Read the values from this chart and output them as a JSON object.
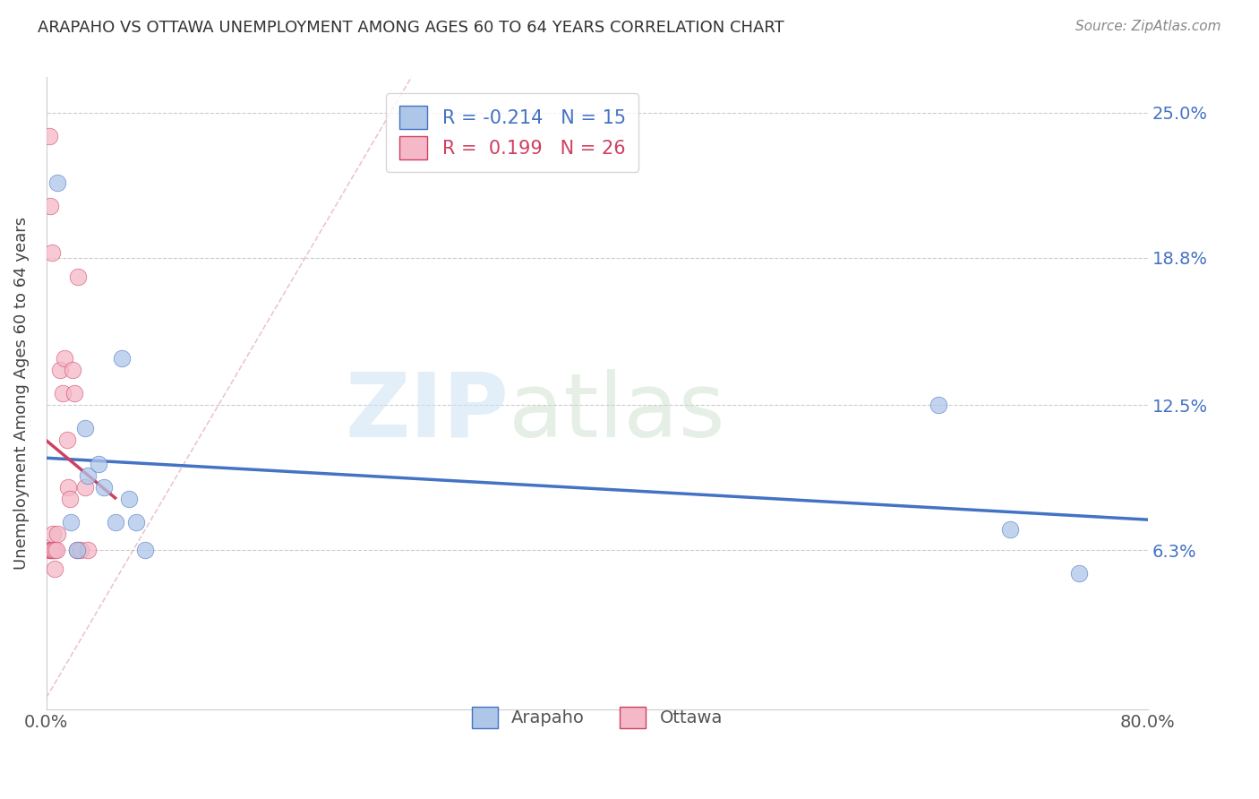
{
  "title": "ARAPAHO VS OTTAWA UNEMPLOYMENT AMONG AGES 60 TO 64 YEARS CORRELATION CHART",
  "source": "Source: ZipAtlas.com",
  "ylabel": "Unemployment Among Ages 60 to 64 years",
  "xlim": [
    0.0,
    0.8
  ],
  "ylim": [
    -0.005,
    0.265
  ],
  "ytick_values": [
    0.0,
    0.063,
    0.125,
    0.188,
    0.25
  ],
  "ytick_labels": [
    "",
    "6.3%",
    "12.5%",
    "18.8%",
    "25.0%"
  ],
  "arapaho_fill_color": "#aec6e8",
  "arapaho_edge_color": "#4472c4",
  "ottawa_fill_color": "#f4b8c8",
  "ottawa_edge_color": "#d04060",
  "arapaho_line_color": "#4472c4",
  "ottawa_line_color": "#d04060",
  "legend_R_arapaho": "-0.214",
  "legend_N_arapaho": "15",
  "legend_R_ottawa": "0.199",
  "legend_N_ottawa": "26",
  "arapaho_x": [
    0.008,
    0.018,
    0.022,
    0.028,
    0.03,
    0.038,
    0.042,
    0.05,
    0.055,
    0.06,
    0.065,
    0.072,
    0.648,
    0.7,
    0.75
  ],
  "arapaho_y": [
    0.22,
    0.075,
    0.063,
    0.115,
    0.095,
    0.1,
    0.09,
    0.075,
    0.145,
    0.085,
    0.075,
    0.063,
    0.125,
    0.072,
    0.053
  ],
  "ottawa_x": [
    0.002,
    0.003,
    0.004,
    0.004,
    0.005,
    0.005,
    0.006,
    0.007,
    0.008,
    0.01,
    0.012,
    0.013,
    0.015,
    0.016,
    0.017,
    0.019,
    0.02,
    0.022,
    0.023,
    0.025,
    0.028,
    0.03,
    0.002,
    0.003,
    0.004,
    0.006
  ],
  "ottawa_y": [
    0.063,
    0.063,
    0.063,
    0.063,
    0.063,
    0.07,
    0.063,
    0.063,
    0.07,
    0.14,
    0.13,
    0.145,
    0.11,
    0.09,
    0.085,
    0.14,
    0.13,
    0.063,
    0.18,
    0.063,
    0.09,
    0.063,
    0.24,
    0.21,
    0.19,
    0.055
  ]
}
